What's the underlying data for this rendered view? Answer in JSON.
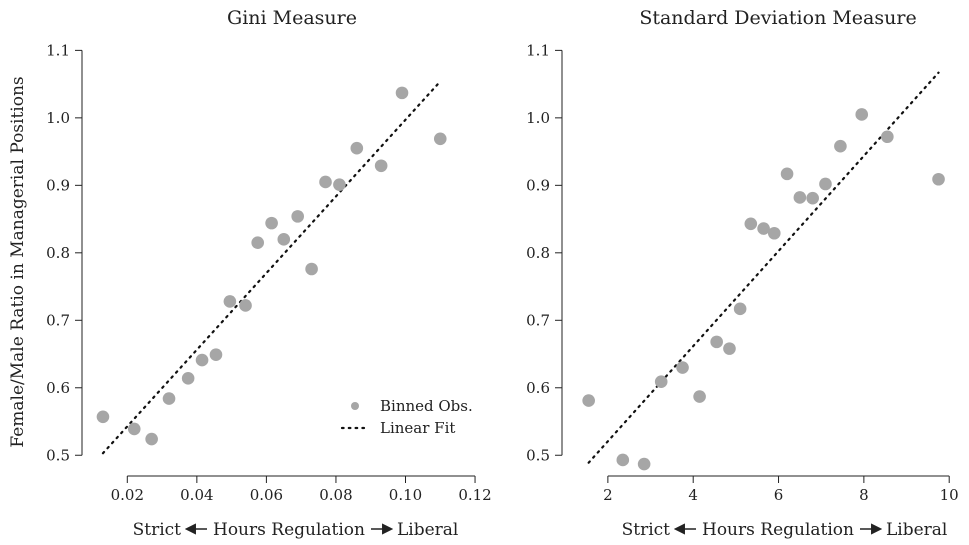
{
  "shared_ylabel": "Female/Male Ratio in Managerial Positions",
  "colors": {
    "point": "#a6a6a6",
    "fit": "#111111",
    "axis": "#222222"
  },
  "chart_data": [
    {
      "type": "scatter",
      "title": "Gini Measure",
      "xlabel_parts": [
        "Strict",
        "Hours Regulation",
        "Liberal"
      ],
      "ylabel": "Female/Male Ratio in Managerial Positions",
      "xlim": [
        0.011,
        0.122
      ],
      "ylim": [
        0.49,
        1.105
      ],
      "xticks": [
        0.02,
        0.04,
        0.06,
        0.08,
        0.1,
        0.12
      ],
      "xtick_labels": [
        "0.02",
        "0.04",
        "0.06",
        "0.08",
        "0.10",
        "0.12"
      ],
      "yticks": [
        0.5,
        0.6,
        0.7,
        0.8,
        0.9,
        1.0,
        1.1
      ],
      "ytick_labels": [
        "0.5",
        "0.6",
        "0.7",
        "0.8",
        "0.9",
        "1.0",
        "1.1"
      ],
      "legend": {
        "position": "bottom-right",
        "entries": [
          "Binned Obs.",
          "Linear Fit"
        ]
      },
      "points": [
        {
          "x": 0.013,
          "y": 0.557
        },
        {
          "x": 0.022,
          "y": 0.539
        },
        {
          "x": 0.027,
          "y": 0.524
        },
        {
          "x": 0.032,
          "y": 0.584
        },
        {
          "x": 0.0375,
          "y": 0.614
        },
        {
          "x": 0.0415,
          "y": 0.641
        },
        {
          "x": 0.0455,
          "y": 0.649
        },
        {
          "x": 0.0495,
          "y": 0.728
        },
        {
          "x": 0.054,
          "y": 0.722
        },
        {
          "x": 0.0575,
          "y": 0.815
        },
        {
          "x": 0.0615,
          "y": 0.844
        },
        {
          "x": 0.065,
          "y": 0.82
        },
        {
          "x": 0.069,
          "y": 0.854
        },
        {
          "x": 0.073,
          "y": 0.776
        },
        {
          "x": 0.077,
          "y": 0.905
        },
        {
          "x": 0.081,
          "y": 0.901
        },
        {
          "x": 0.086,
          "y": 0.955
        },
        {
          "x": 0.093,
          "y": 0.929
        },
        {
          "x": 0.099,
          "y": 1.037
        },
        {
          "x": 0.11,
          "y": 0.969
        }
      ],
      "fit": {
        "x": [
          0.013,
          0.11
        ],
        "y": [
          0.503,
          1.054
        ]
      }
    },
    {
      "type": "scatter",
      "title": "Standard Deviation Measure",
      "xlabel_parts": [
        "Strict",
        "Hours Regulation",
        "Liberal"
      ],
      "ylabel": "",
      "xlim": [
        1.3,
        10.3
      ],
      "ylim": [
        0.49,
        1.105
      ],
      "xticks": [
        2,
        4,
        6,
        8,
        10
      ],
      "xtick_labels": [
        "2",
        "4",
        "6",
        "8",
        "10"
      ],
      "yticks": [
        0.5,
        0.6,
        0.7,
        0.8,
        0.9,
        1.0,
        1.1
      ],
      "ytick_labels": [
        "0.5",
        "0.6",
        "0.7",
        "0.8",
        "0.9",
        "1.0",
        "1.1"
      ],
      "points": [
        {
          "x": 1.55,
          "y": 0.581
        },
        {
          "x": 2.35,
          "y": 0.493
        },
        {
          "x": 2.85,
          "y": 0.487
        },
        {
          "x": 3.25,
          "y": 0.609
        },
        {
          "x": 3.75,
          "y": 0.63
        },
        {
          "x": 4.15,
          "y": 0.587
        },
        {
          "x": 4.55,
          "y": 0.668
        },
        {
          "x": 4.85,
          "y": 0.658
        },
        {
          "x": 5.1,
          "y": 0.717
        },
        {
          "x": 5.35,
          "y": 0.843
        },
        {
          "x": 5.65,
          "y": 0.836
        },
        {
          "x": 5.9,
          "y": 0.829
        },
        {
          "x": 6.2,
          "y": 0.917
        },
        {
          "x": 6.5,
          "y": 0.882
        },
        {
          "x": 6.8,
          "y": 0.881
        },
        {
          "x": 7.1,
          "y": 0.902
        },
        {
          "x": 7.45,
          "y": 0.958
        },
        {
          "x": 7.95,
          "y": 1.005
        },
        {
          "x": 8.55,
          "y": 0.972
        },
        {
          "x": 9.75,
          "y": 0.909
        }
      ],
      "fit": {
        "x": [
          1.55,
          9.75
        ],
        "y": [
          0.489,
          1.067
        ]
      }
    }
  ]
}
